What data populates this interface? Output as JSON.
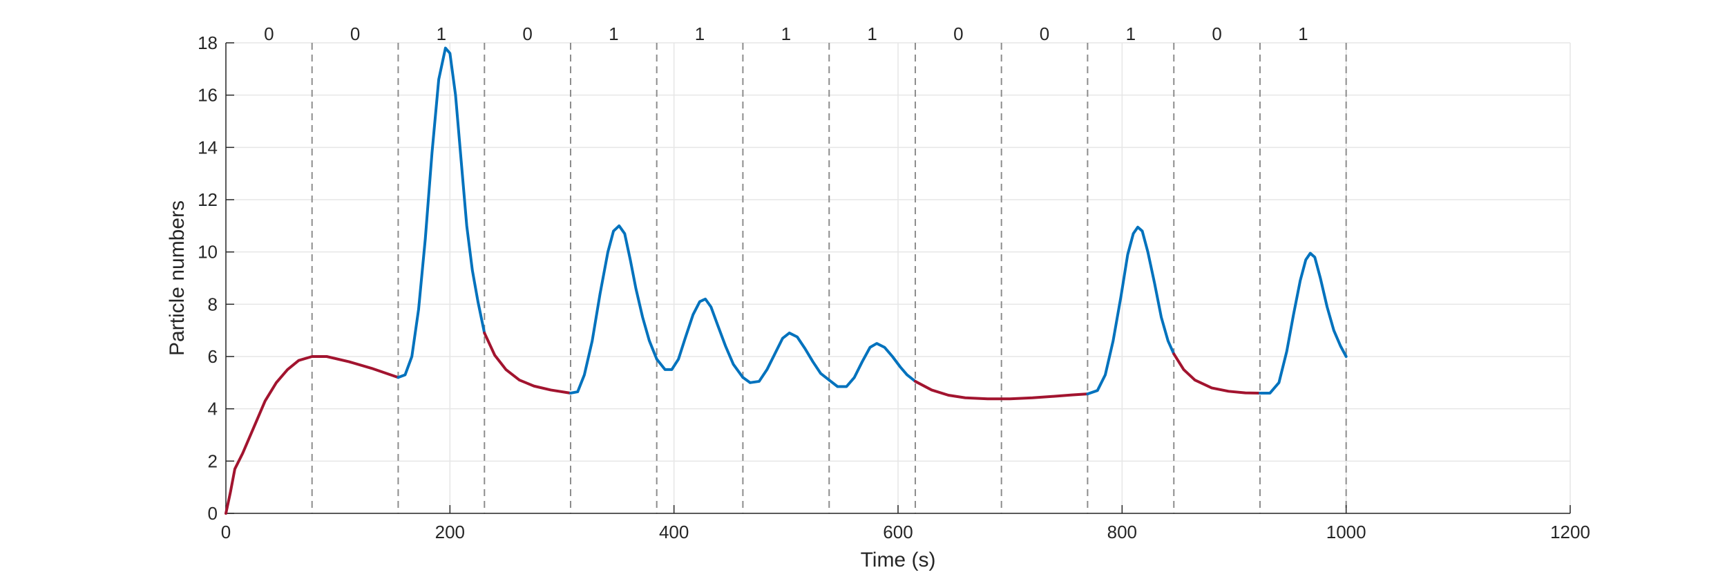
{
  "chart_data": {
    "type": "line",
    "title": "",
    "xlabel": "Time (s)",
    "ylabel": "Particle numbers",
    "xlim": [
      0,
      1200
    ],
    "ylim": [
      0,
      18
    ],
    "xticks": [
      "0",
      "200",
      "400",
      "600",
      "800",
      "1000",
      "1200"
    ],
    "yticks": [
      "0",
      "2",
      "4",
      "6",
      "8",
      "10",
      "12",
      "14",
      "16",
      "18"
    ],
    "grid": true,
    "colors": {
      "bit0": "#a2142f",
      "bit1": "#0072bd",
      "divider": "#8c8c8c",
      "grid": "#e6e6e6",
      "axis": "#262626"
    },
    "bit_dividers_x": [
      76.9,
      153.8,
      230.8,
      307.7,
      384.6,
      461.5,
      538.5,
      615.4,
      692.3,
      769.2,
      846.2,
      923.1,
      1000
    ],
    "bits": [
      "0",
      "0",
      "1",
      "0",
      "1",
      "1",
      "1",
      "1",
      "0",
      "0",
      "1",
      "0",
      "1"
    ],
    "segments": [
      {
        "bit": 0,
        "points": [
          [
            0,
            0
          ],
          [
            4,
            0.8
          ],
          [
            8,
            1.7
          ],
          [
            15,
            2.3
          ],
          [
            25,
            3.3
          ],
          [
            35,
            4.3
          ],
          [
            45,
            5.0
          ],
          [
            55,
            5.5
          ],
          [
            65,
            5.85
          ],
          [
            76.9,
            6.0
          ],
          [
            90,
            6.0
          ],
          [
            110,
            5.8
          ],
          [
            130,
            5.55
          ],
          [
            153.8,
            5.2
          ]
        ]
      },
      {
        "bit": 1,
        "points": [
          [
            153.8,
            5.2
          ],
          [
            160,
            5.3
          ],
          [
            166,
            6.0
          ],
          [
            172,
            7.8
          ],
          [
            178,
            10.5
          ],
          [
            184,
            13.8
          ],
          [
            190,
            16.6
          ],
          [
            196,
            17.8
          ],
          [
            200,
            17.6
          ],
          [
            205,
            16.0
          ],
          [
            210,
            13.5
          ],
          [
            215,
            11.0
          ],
          [
            220,
            9.3
          ],
          [
            225,
            8.1
          ],
          [
            230.8,
            6.9
          ]
        ]
      },
      {
        "bit": 0,
        "points": [
          [
            230.8,
            6.9
          ],
          [
            240,
            6.05
          ],
          [
            250,
            5.5
          ],
          [
            262,
            5.1
          ],
          [
            275,
            4.87
          ],
          [
            290,
            4.72
          ],
          [
            307.7,
            4.6
          ]
        ]
      },
      {
        "bit": 1,
        "points": [
          [
            307.7,
            4.6
          ],
          [
            314,
            4.65
          ],
          [
            320,
            5.3
          ],
          [
            327,
            6.6
          ],
          [
            334,
            8.4
          ],
          [
            341,
            10.0
          ],
          [
            346,
            10.8
          ],
          [
            351,
            11.0
          ],
          [
            356,
            10.7
          ],
          [
            361,
            9.7
          ],
          [
            366,
            8.6
          ],
          [
            372,
            7.5
          ],
          [
            378,
            6.6
          ],
          [
            384.6,
            5.9
          ]
        ]
      },
      {
        "bit": 1,
        "points": [
          [
            384.6,
            5.9
          ],
          [
            392,
            5.5
          ],
          [
            398,
            5.5
          ],
          [
            404,
            5.9
          ],
          [
            410,
            6.7
          ],
          [
            417,
            7.6
          ],
          [
            423,
            8.1
          ],
          [
            428,
            8.2
          ],
          [
            433,
            7.9
          ],
          [
            439,
            7.2
          ],
          [
            446,
            6.4
          ],
          [
            453,
            5.7
          ],
          [
            461.5,
            5.2
          ]
        ]
      },
      {
        "bit": 1,
        "points": [
          [
            461.5,
            5.2
          ],
          [
            468,
            5.0
          ],
          [
            476,
            5.05
          ],
          [
            483,
            5.5
          ],
          [
            490,
            6.1
          ],
          [
            497,
            6.7
          ],
          [
            503,
            6.9
          ],
          [
            510,
            6.75
          ],
          [
            517,
            6.3
          ],
          [
            524,
            5.8
          ],
          [
            531,
            5.35
          ],
          [
            538.5,
            5.1
          ]
        ]
      },
      {
        "bit": 1,
        "points": [
          [
            538.5,
            5.1
          ],
          [
            546,
            4.85
          ],
          [
            554,
            4.85
          ],
          [
            561,
            5.2
          ],
          [
            568,
            5.8
          ],
          [
            575,
            6.35
          ],
          [
            581,
            6.5
          ],
          [
            588,
            6.35
          ],
          [
            595,
            6.0
          ],
          [
            602,
            5.6
          ],
          [
            608,
            5.3
          ],
          [
            615.4,
            5.05
          ]
        ]
      },
      {
        "bit": 0,
        "points": [
          [
            615.4,
            5.05
          ],
          [
            630,
            4.72
          ],
          [
            645,
            4.52
          ],
          [
            660,
            4.42
          ],
          [
            680,
            4.38
          ],
          [
            700,
            4.38
          ],
          [
            720,
            4.42
          ],
          [
            740,
            4.48
          ],
          [
            755,
            4.53
          ],
          [
            769.2,
            4.57
          ]
        ]
      },
      {
        "bit": 1,
        "points": [
          [
            769.2,
            4.57
          ],
          [
            778,
            4.7
          ],
          [
            785,
            5.3
          ],
          [
            792,
            6.6
          ],
          [
            799,
            8.3
          ],
          [
            805,
            9.9
          ],
          [
            810,
            10.7
          ],
          [
            814,
            10.95
          ],
          [
            818,
            10.8
          ],
          [
            823,
            10.0
          ],
          [
            829,
            8.8
          ],
          [
            835,
            7.5
          ],
          [
            841,
            6.6
          ],
          [
            846.2,
            6.1
          ]
        ]
      },
      {
        "bit": 0,
        "points": [
          [
            846.2,
            6.1
          ],
          [
            855,
            5.5
          ],
          [
            865,
            5.1
          ],
          [
            880,
            4.8
          ],
          [
            895,
            4.67
          ],
          [
            910,
            4.61
          ],
          [
            923.1,
            4.6
          ]
        ]
      },
      {
        "bit": 1,
        "points": [
          [
            923.1,
            4.6
          ],
          [
            932,
            4.6
          ],
          [
            940,
            5.0
          ],
          [
            947,
            6.2
          ],
          [
            953,
            7.6
          ],
          [
            959,
            8.9
          ],
          [
            964,
            9.7
          ],
          [
            968,
            9.95
          ],
          [
            972,
            9.8
          ],
          [
            977,
            9.0
          ],
          [
            983,
            7.9
          ],
          [
            989,
            7.0
          ],
          [
            995,
            6.4
          ],
          [
            1000,
            6.0
          ]
        ]
      }
    ]
  }
}
